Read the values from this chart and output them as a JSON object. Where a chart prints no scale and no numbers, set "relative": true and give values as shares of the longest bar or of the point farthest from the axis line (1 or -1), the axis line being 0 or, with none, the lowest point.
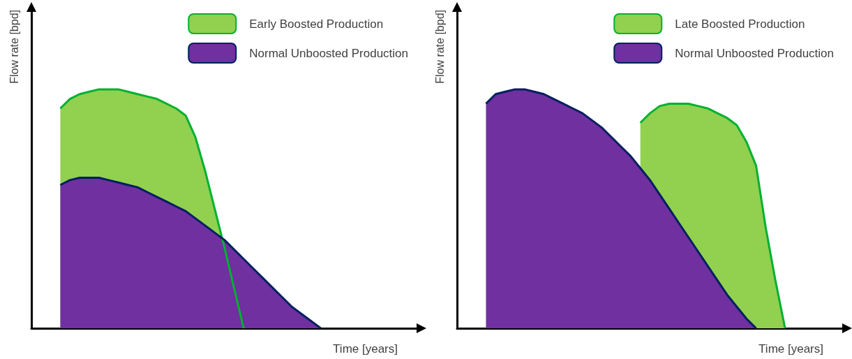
{
  "chart_data": [
    {
      "type": "area",
      "relative": true,
      "xlabel": "Time [years]",
      "ylabel": "Flow rate [bpd]",
      "legend": "top right",
      "grid": false,
      "marker": "none",
      "categories": [
        null,
        null,
        null,
        null,
        null,
        null,
        null,
        null,
        null,
        null,
        null,
        null,
        null,
        null,
        null,
        null,
        null,
        null,
        null,
        null,
        null,
        null,
        null,
        null,
        null,
        null,
        null,
        null,
        null,
        null,
        null,
        null,
        null,
        null,
        null,
        null,
        null,
        null,
        null,
        null,
        null
      ],
      "series": [
        {
          "name": "Early Boosted Production",
          "color": "#92d050",
          "values": [
            null,
            null,
            null,
            0.92,
            0.96,
            0.98,
            0.99,
            1.0,
            1.0,
            1.0,
            0.99,
            0.98,
            0.97,
            0.96,
            0.94,
            0.92,
            0.89,
            0.8,
            0.66,
            0.5,
            0.34,
            0.17,
            0,
            null,
            null,
            null,
            null,
            null,
            null,
            null,
            null,
            null,
            null,
            null,
            null,
            null,
            null,
            null,
            null,
            null,
            null
          ]
        },
        {
          "name": "Normal Unboosted Production",
          "color": "#7030a0",
          "values": [
            null,
            null,
            null,
            0.6,
            0.62,
            0.63,
            0.63,
            0.63,
            0.62,
            0.61,
            0.6,
            0.59,
            0.57,
            0.55,
            0.53,
            0.51,
            0.49,
            0.46,
            0.43,
            0.4,
            0.37,
            0.33,
            0.29,
            0.25,
            0.21,
            0.17,
            0.13,
            0.09,
            0.06,
            0.03,
            0,
            null,
            null,
            null,
            null,
            null,
            null,
            null,
            null,
            null,
            null
          ]
        }
      ]
    },
    {
      "type": "area",
      "relative": true,
      "xlabel": "Time [years]",
      "ylabel": "Flow rate [bpd]",
      "legend": "top right",
      "grid": false,
      "marker": "none",
      "categories": [
        null,
        null,
        null,
        null,
        null,
        null,
        null,
        null,
        null,
        null,
        null,
        null,
        null,
        null,
        null,
        null,
        null,
        null,
        null,
        null,
        null,
        null,
        null,
        null,
        null,
        null,
        null,
        null,
        null,
        null,
        null,
        null,
        null,
        null,
        null,
        null,
        null,
        null,
        null,
        null,
        null
      ],
      "series": [
        {
          "name": "Late Boosted Production",
          "color": "#92d050",
          "values": [
            null,
            null,
            null,
            null,
            null,
            null,
            null,
            null,
            null,
            null,
            null,
            null,
            null,
            null,
            null,
            null,
            null,
            null,
            null,
            0.86,
            0.9,
            0.93,
            0.94,
            0.94,
            0.94,
            0.93,
            0.92,
            0.9,
            0.88,
            0.85,
            0.78,
            0.68,
            0.42,
            0.2,
            0,
            null,
            null,
            null,
            null,
            null,
            null
          ]
        },
        {
          "name": "Normal Unboosted Production",
          "color": "#7030a0",
          "values": [
            null,
            null,
            null,
            0.94,
            0.98,
            0.99,
            1.0,
            1.0,
            0.99,
            0.98,
            0.96,
            0.94,
            0.92,
            0.9,
            0.87,
            0.84,
            0.8,
            0.76,
            0.72,
            0.67,
            0.62,
            0.56,
            0.5,
            0.44,
            0.38,
            0.32,
            0.26,
            0.2,
            0.14,
            0.09,
            0.04,
            0,
            null,
            null,
            null,
            null,
            null,
            null,
            null,
            null,
            null
          ]
        }
      ]
    }
  ]
}
